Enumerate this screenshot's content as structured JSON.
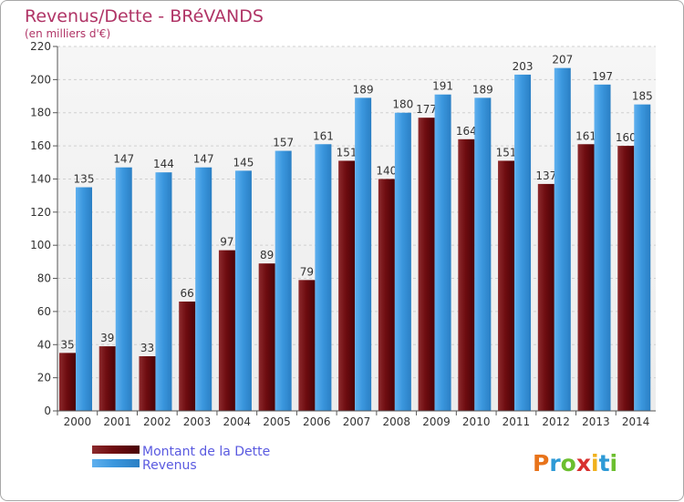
{
  "chart_data": {
    "type": "bar",
    "title": "Revenus/Dette - BRéVANDS",
    "subtitle": "(en milliers d'€)",
    "categories": [
      "2000",
      "2001",
      "2002",
      "2003",
      "2004",
      "2005",
      "2006",
      "2007",
      "2008",
      "2009",
      "2010",
      "2011",
      "2012",
      "2013",
      "2014"
    ],
    "series": [
      {
        "name": "Montant de la Dette",
        "values": [
          35,
          39,
          33,
          66,
          97,
          89,
          79,
          151,
          140,
          177,
          164,
          151,
          137,
          161,
          160
        ],
        "color": "#6e0c10"
      },
      {
        "name": "Revenus",
        "values": [
          135,
          147,
          144,
          147,
          145,
          157,
          161,
          189,
          180,
          191,
          189,
          203,
          207,
          197,
          185
        ],
        "color": "#3b97de"
      }
    ],
    "ylim": [
      0,
      220
    ],
    "yticks": [
      0,
      20,
      40,
      60,
      80,
      100,
      120,
      140,
      160,
      180,
      200,
      220
    ],
    "grid": true,
    "legend_position": "bottom-left"
  },
  "brand": {
    "letters": [
      "P",
      "r",
      "o",
      "x",
      "i",
      "t",
      "i"
    ],
    "colors": [
      "#e8731a",
      "#2e9ad6",
      "#6cbf2f",
      "#d8312f",
      "#f0b11d",
      "#2e9ad6",
      "#6cbf2f"
    ]
  }
}
